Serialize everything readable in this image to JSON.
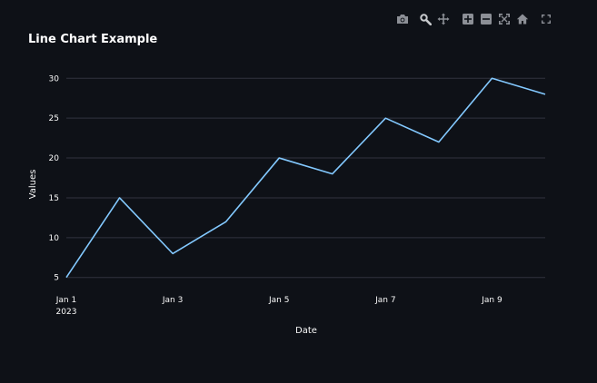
{
  "toolbar": {
    "icons": [
      "camera-icon",
      "zoom-icon",
      "pan-icon",
      "zoom-in-icon",
      "zoom-out-icon",
      "autoscale-icon",
      "home-icon",
      "fullscreen-icon"
    ],
    "icon_color": "#8c8f96",
    "active_icon_color": "#c7c9cc"
  },
  "colors": {
    "background": "#0e1117",
    "gridline": "#31333f",
    "line": "#83c9ff",
    "text": "#fafafa"
  },
  "chart_data": {
    "type": "line",
    "title": "Line Chart Example",
    "xlabel": "Date",
    "ylabel": "Values",
    "x": [
      "2023-01-01",
      "2023-01-02",
      "2023-01-03",
      "2023-01-04",
      "2023-01-05",
      "2023-01-06",
      "2023-01-07",
      "2023-01-08",
      "2023-01-09",
      "2023-01-10"
    ],
    "series": [
      {
        "values": [
          5,
          15,
          8,
          12,
          20,
          18,
          25,
          22,
          30,
          28
        ]
      }
    ],
    "xticks": [
      {
        "value": "2023-01-01",
        "label": "Jan 1",
        "sublabel": "2023"
      },
      {
        "value": "2023-01-03",
        "label": "Jan 3",
        "sublabel": ""
      },
      {
        "value": "2023-01-05",
        "label": "Jan 5",
        "sublabel": ""
      },
      {
        "value": "2023-01-07",
        "label": "Jan 7",
        "sublabel": ""
      },
      {
        "value": "2023-01-09",
        "label": "Jan 9",
        "sublabel": ""
      }
    ],
    "yticks": [
      5,
      10,
      15,
      20,
      25,
      30
    ],
    "ylim": [
      3.6,
      31.4
    ],
    "xlim": [
      "2023-01-01",
      "2023-01-10"
    ],
    "grid": true,
    "legend": false
  }
}
